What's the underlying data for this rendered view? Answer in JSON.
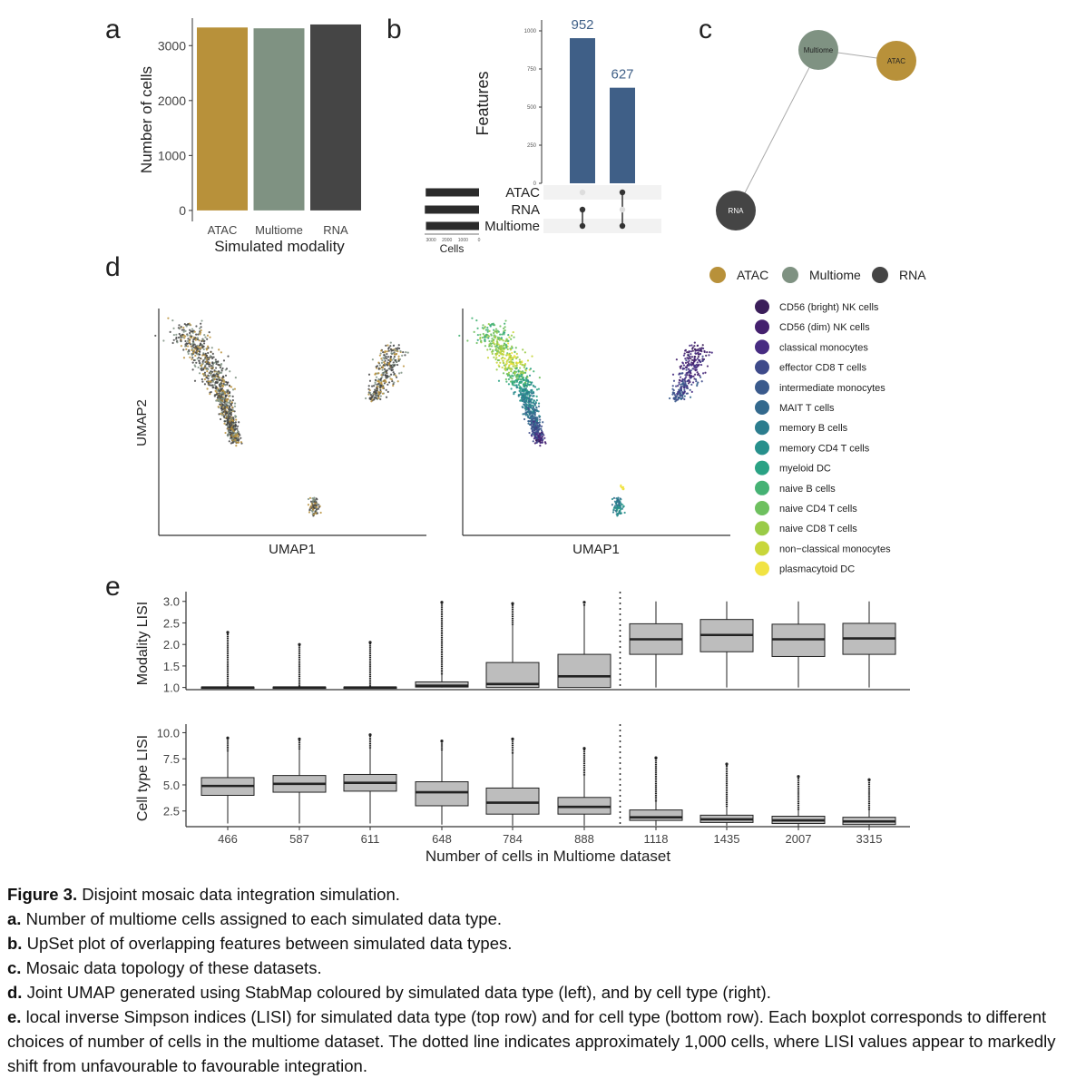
{
  "colors": {
    "atac": "#b8913a",
    "multiome": "#7f9282",
    "rna": "#454545",
    "upset_bar": "#3f5f87",
    "box_fill": "#bdbdbd",
    "dot_inactive": "#dddddd",
    "dot_active": "#333333"
  },
  "panels": {
    "a": "a",
    "b": "b",
    "c": "c",
    "d": "d",
    "e": "e"
  },
  "chart_data": [
    {
      "panel": "a",
      "type": "bar",
      "categories": [
        "ATAC",
        "Multiome",
        "RNA"
      ],
      "values": [
        3330,
        3315,
        3385
      ],
      "xlabel": "Simulated modality",
      "ylabel": "Number of cells",
      "ylim": [
        -200,
        3500
      ],
      "yticks": [
        "0",
        "1000",
        "2000",
        "3000"
      ]
    },
    {
      "panel": "b",
      "type": "bar",
      "title": "UpSet plot",
      "intersections": [
        "RNA & Multiome",
        "ATAC & Multiome"
      ],
      "values": [
        952,
        627
      ],
      "value_labels": [
        "952",
        "627"
      ],
      "ylabel": "Features",
      "ylim": [
        0,
        1000
      ],
      "yticks": [
        "0",
        "250",
        "500",
        "750",
        "1000"
      ],
      "sets": [
        "ATAC",
        "RNA",
        "Multiome"
      ],
      "set_sizes": [
        3330,
        3385,
        3315
      ],
      "set_size_label": "Cells",
      "set_size_ticks": [
        "3000",
        "2000",
        "1000",
        "0"
      ]
    },
    {
      "panel": "c",
      "type": "network",
      "nodes": [
        "Multiome",
        "ATAC",
        "RNA"
      ],
      "edges": [
        [
          "Multiome",
          "ATAC"
        ],
        [
          "Multiome",
          "RNA"
        ]
      ]
    },
    {
      "panel": "d",
      "type": "scatter",
      "xlabel": "UMAP1",
      "ylabel": "UMAP2",
      "modality_legend": [
        "ATAC",
        "Multiome",
        "RNA"
      ],
      "celltype_legend": [
        {
          "label": "CD56 (bright) NK cells",
          "color": "#3b1e5a"
        },
        {
          "label": "CD56 (dim) NK cells",
          "color": "#44206e"
        },
        {
          "label": "classical monocytes",
          "color": "#472c82"
        },
        {
          "label": "effector CD8 T cells",
          "color": "#3e4a8a"
        },
        {
          "label": "intermediate monocytes",
          "color": "#3a5a8c"
        },
        {
          "label": "MAIT T cells",
          "color": "#33698d"
        },
        {
          "label": "memory B cells",
          "color": "#2c7d8e"
        },
        {
          "label": "memory CD4 T cells",
          "color": "#27908c"
        },
        {
          "label": "myeloid DC",
          "color": "#2aa284"
        },
        {
          "label": "naive B cells",
          "color": "#45b274"
        },
        {
          "label": "naive CD4 T cells",
          "color": "#6ec05f"
        },
        {
          "label": "naive CD8 T cells",
          "color": "#9acb47"
        },
        {
          "label": "non−classical monocytes",
          "color": "#c8d63a"
        },
        {
          "label": "plasmacytoid DC",
          "color": "#f1e343"
        }
      ]
    },
    {
      "panel": "e",
      "type": "boxplot",
      "xlabel": "Number of cells in Multiome dataset",
      "categories": [
        "466",
        "587",
        "611",
        "648",
        "784",
        "888",
        "1118",
        "1435",
        "2007",
        "3315"
      ],
      "divider_after_index": 5,
      "top": {
        "ylabel": "Modality LISI",
        "ylim": [
          0.95,
          3.1
        ],
        "yticks": [
          "1.0",
          "1.5",
          "2.0",
          "2.5",
          "3.0"
        ],
        "boxes": [
          {
            "q1": 1.0,
            "med": 1.0,
            "q3": 1.01,
            "wlo": 1.0,
            "whi": 1.02,
            "outmax": 2.28
          },
          {
            "q1": 1.0,
            "med": 1.0,
            "q3": 1.01,
            "wlo": 1.0,
            "whi": 1.02,
            "outmax": 2.0
          },
          {
            "q1": 1.0,
            "med": 1.0,
            "q3": 1.01,
            "wlo": 1.0,
            "whi": 1.02,
            "outmax": 2.05
          },
          {
            "q1": 1.01,
            "med": 1.04,
            "q3": 1.13,
            "wlo": 1.0,
            "whi": 1.3,
            "outmax": 2.98
          },
          {
            "q1": 1.0,
            "med": 1.08,
            "q3": 1.58,
            "wlo": 1.0,
            "whi": 2.45,
            "outmax": 2.95
          },
          {
            "q1": 1.0,
            "med": 1.26,
            "q3": 1.77,
            "wlo": 1.0,
            "whi": 2.9,
            "outmax": 2.98
          },
          {
            "q1": 1.77,
            "med": 2.12,
            "q3": 2.48,
            "wlo": 1.0,
            "whi": 3.0,
            "outmax": null
          },
          {
            "q1": 1.83,
            "med": 2.22,
            "q3": 2.58,
            "wlo": 1.0,
            "whi": 3.0,
            "outmax": null
          },
          {
            "q1": 1.72,
            "med": 2.12,
            "q3": 2.47,
            "wlo": 1.0,
            "whi": 3.0,
            "outmax": null
          },
          {
            "q1": 1.77,
            "med": 2.14,
            "q3": 2.49,
            "wlo": 1.0,
            "whi": 3.0,
            "outmax": null
          }
        ]
      },
      "bottom": {
        "ylabel": "Cell type LISI",
        "ylim": [
          1.0,
          10.3
        ],
        "yticks": [
          "2.5",
          "5.0",
          "7.5",
          "10.0"
        ],
        "boxes": [
          {
            "q1": 4.0,
            "med": 4.9,
            "q3": 5.7,
            "wlo": 1.3,
            "whi": 8.2,
            "outmax": 9.5
          },
          {
            "q1": 4.3,
            "med": 5.1,
            "q3": 5.9,
            "wlo": 1.3,
            "whi": 8.4,
            "outmax": 9.4
          },
          {
            "q1": 4.4,
            "med": 5.2,
            "q3": 6.0,
            "wlo": 1.3,
            "whi": 8.5,
            "outmax": 9.8
          },
          {
            "q1": 3.0,
            "med": 4.3,
            "q3": 5.3,
            "wlo": 1.2,
            "whi": 8.3,
            "outmax": 9.2
          },
          {
            "q1": 2.2,
            "med": 3.3,
            "q3": 4.7,
            "wlo": 1.1,
            "whi": 8.0,
            "outmax": 9.4
          },
          {
            "q1": 2.2,
            "med": 2.9,
            "q3": 3.8,
            "wlo": 1.1,
            "whi": 5.9,
            "outmax": 8.5
          },
          {
            "q1": 1.6,
            "med": 1.9,
            "q3": 2.6,
            "wlo": 1.1,
            "whi": 3.4,
            "outmax": 7.6
          },
          {
            "q1": 1.4,
            "med": 1.7,
            "q3": 2.1,
            "wlo": 1.1,
            "whi": 2.9,
            "outmax": 7.0
          },
          {
            "q1": 1.3,
            "med": 1.6,
            "q3": 2.0,
            "wlo": 1.0,
            "whi": 2.6,
            "outmax": 5.8
          },
          {
            "q1": 1.2,
            "med": 1.5,
            "q3": 1.9,
            "wlo": 1.0,
            "whi": 2.6,
            "outmax": 5.5
          }
        ]
      }
    }
  ],
  "caption": {
    "title_bold": "Figure 3.",
    "title_text": " Disjoint mosaic data integration simulation.",
    "items": [
      {
        "bold": "a.",
        "text": " Number of multiome cells assigned to each simulated data type."
      },
      {
        "bold": "b.",
        "text": " UpSet plot of overlapping features between simulated data types."
      },
      {
        "bold": "c.",
        "text": " Mosaic data topology of these datasets."
      },
      {
        "bold": "d.",
        "text": " Joint UMAP generated using StabMap coloured by simulated data type (left), and by cell type (right)."
      },
      {
        "bold": "e.",
        "text": " local inverse Simpson indices (LISI) for simulated data type (top row) and for cell type (bottom row). Each boxplot corresponds to different choices of number of cells in the multiome dataset. The dotted line indicates approximately 1,000 cells, where LISI values appear to markedly shift from unfavourable to favourable integration."
      }
    ]
  }
}
